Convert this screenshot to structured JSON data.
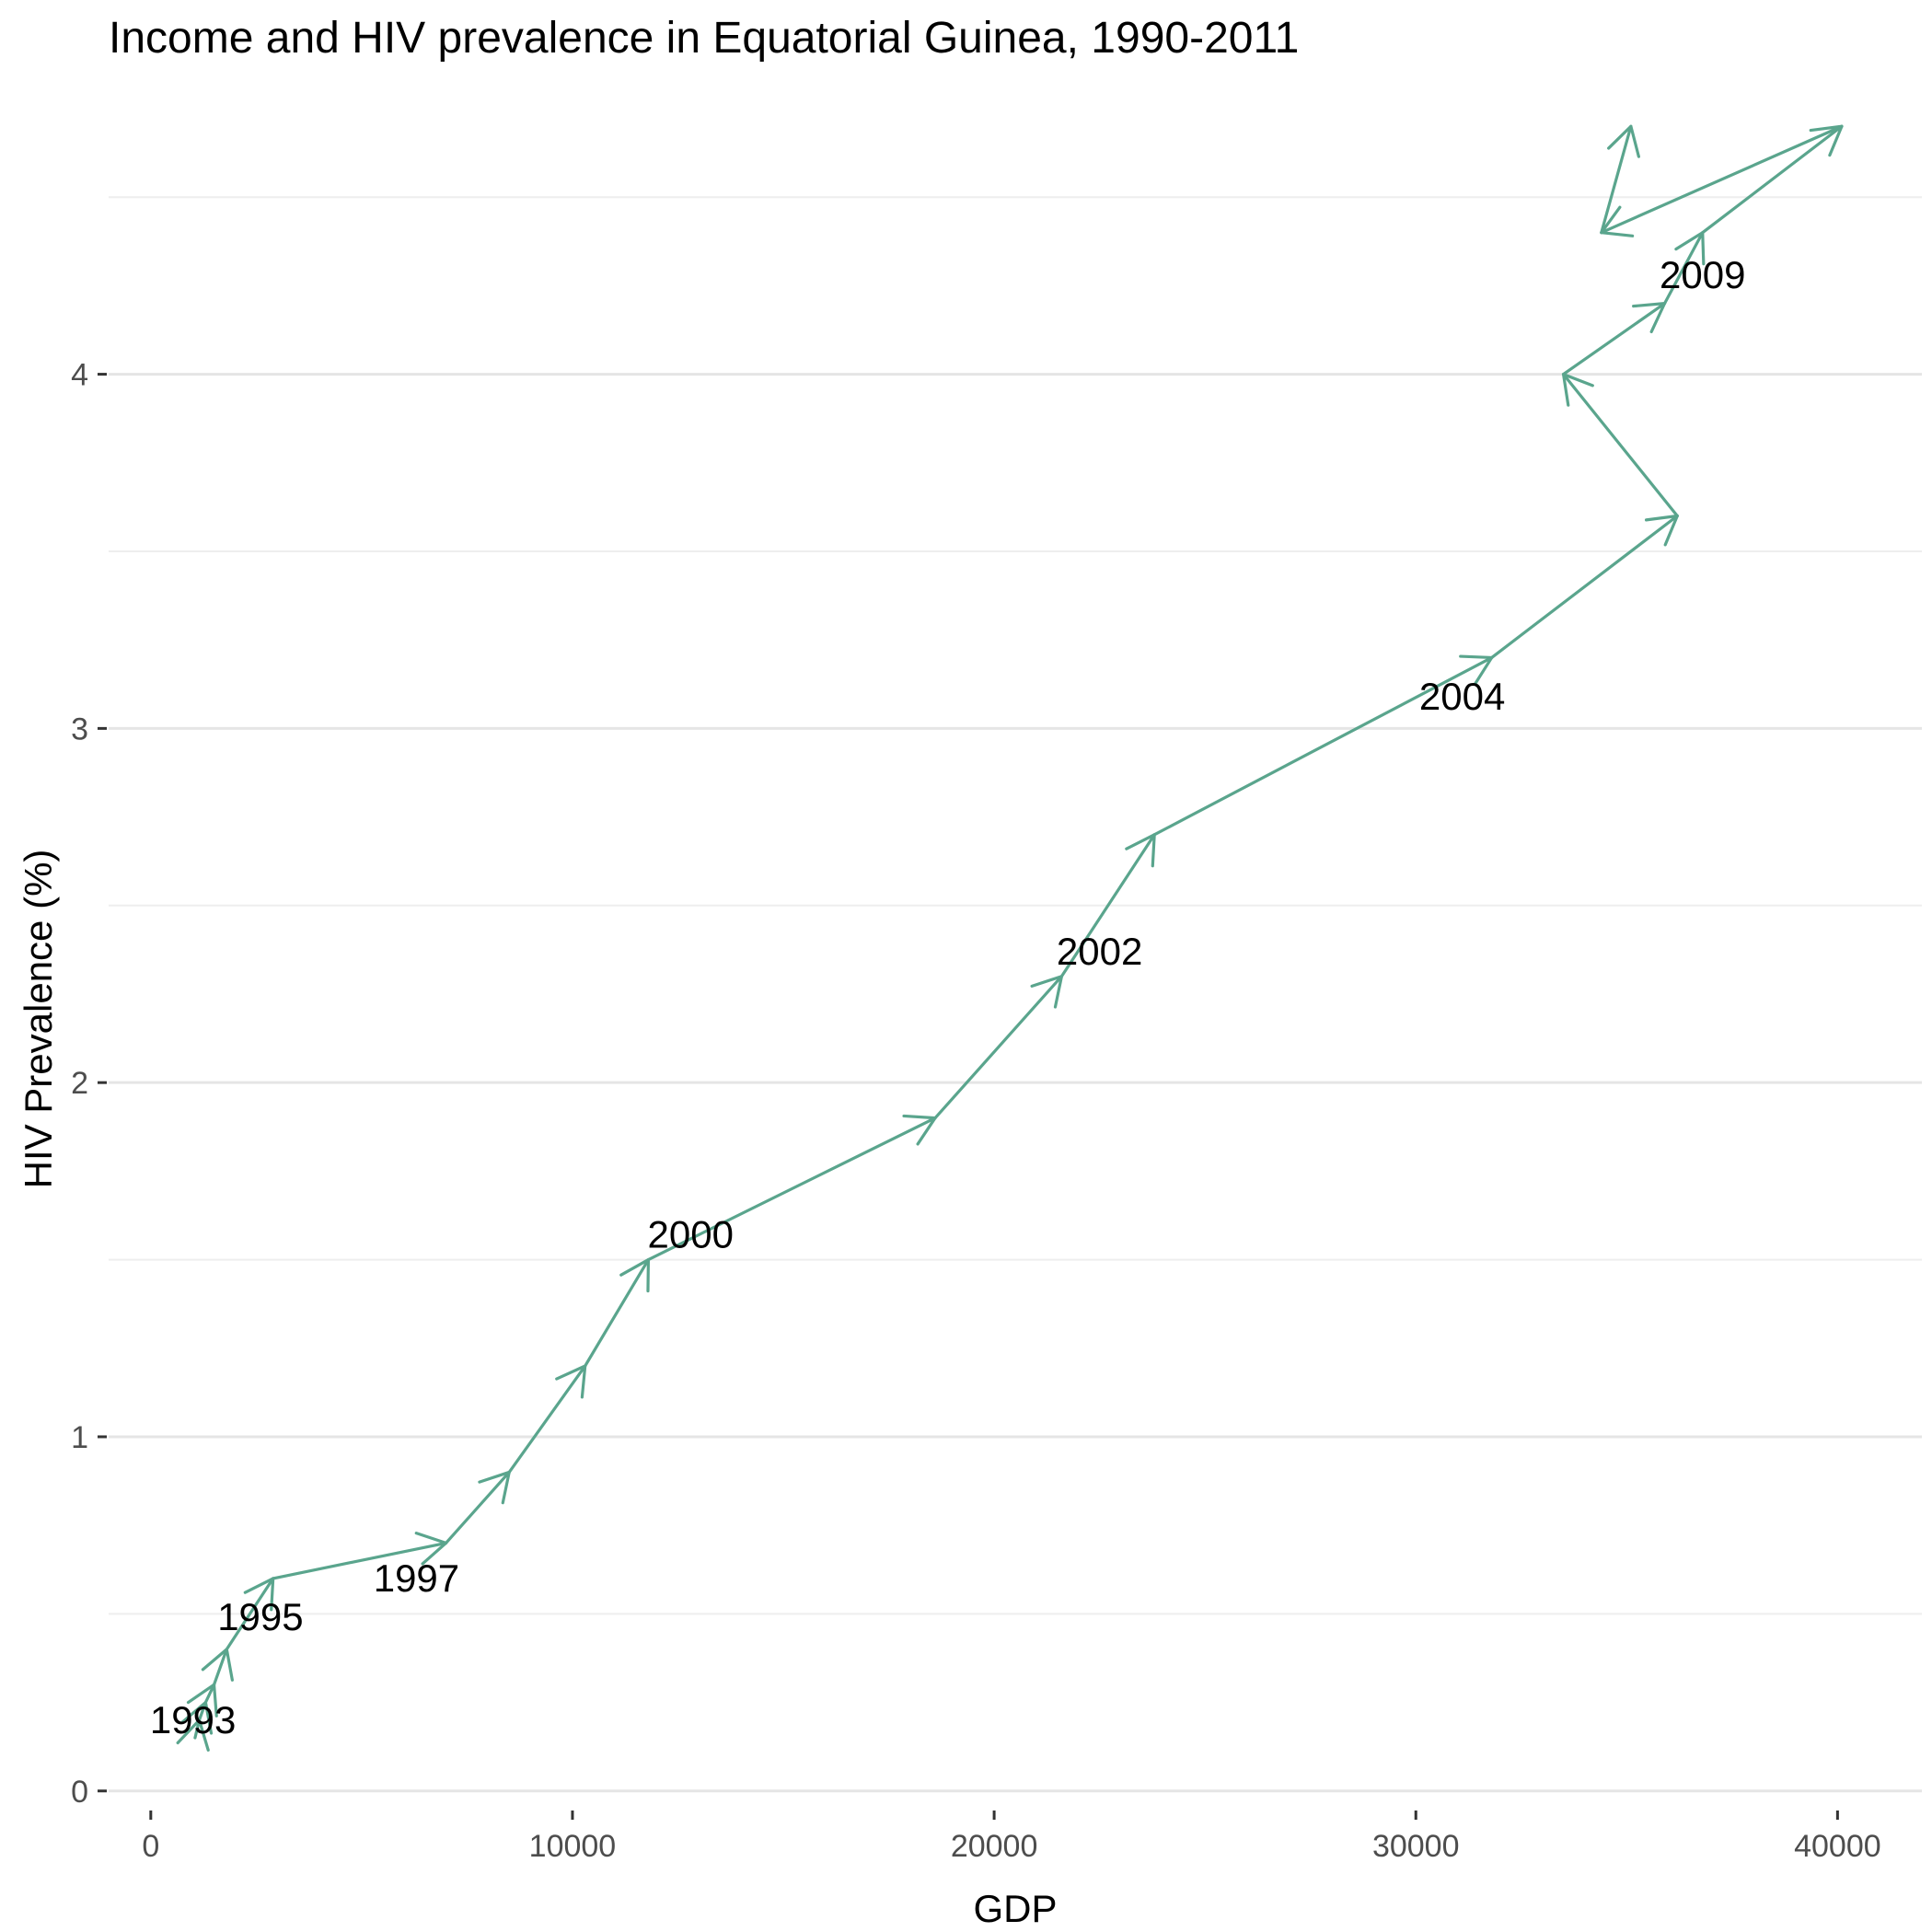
{
  "chart_data": {
    "type": "line",
    "title": "Income and HIV prevalence in Equatorial Guinea, 1990-2011",
    "xlabel": "GDP",
    "ylabel": "HIV Prevalence (%)",
    "xlim": [
      -1000,
      42000
    ],
    "ylim": [
      -0.05,
      4.75
    ],
    "xticks": [
      0,
      10000,
      20000,
      30000,
      40000
    ],
    "yticks": [
      0,
      1,
      2,
      3,
      4
    ],
    "grid": true,
    "line_color": "#5aa58d",
    "series": [
      {
        "x": [
          1050,
          1150,
          1300,
          1500,
          1800,
          2900,
          7000,
          8500,
          10300,
          11800,
          18600,
          21600,
          23800,
          31800,
          36200,
          33500,
          35900,
          36800,
          40100,
          34400,
          35100
        ],
        "y": [
          0.15,
          0.2,
          0.25,
          0.3,
          0.4,
          0.6,
          0.7,
          0.9,
          1.2,
          1.5,
          1.9,
          2.3,
          2.7,
          3.2,
          3.6,
          4.0,
          4.2,
          4.4,
          4.7,
          4.4,
          4.7
        ]
      }
    ],
    "annotations": [
      {
        "text": "1993",
        "x": 1000,
        "y": 0.2
      },
      {
        "text": "1995",
        "x": 2600,
        "y": 0.49
      },
      {
        "text": "1997",
        "x": 6300,
        "y": 0.6
      },
      {
        "text": "2000",
        "x": 12800,
        "y": 1.57
      },
      {
        "text": "2002",
        "x": 22500,
        "y": 2.37
      },
      {
        "text": "2004",
        "x": 31100,
        "y": 3.09
      },
      {
        "text": "2009",
        "x": 36800,
        "y": 4.28
      }
    ]
  }
}
